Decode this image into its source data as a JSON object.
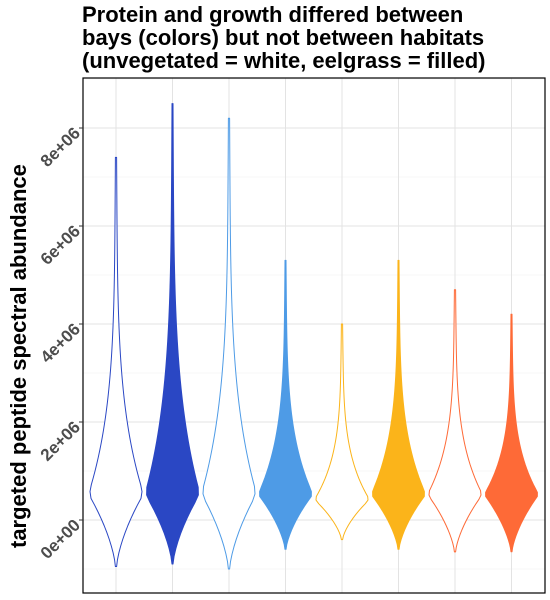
{
  "chart_data": {
    "type": "violin",
    "title_lines": [
      "Protein and growth differed between",
      "bays (colors) but not between habitats",
      "(unvegetated = white, eelgrass = filled)"
    ],
    "xlabel": "",
    "ylabel": "targeted peptide spectral abundance",
    "ylim": [
      -1000000,
      9000000
    ],
    "y_ticks": [
      0,
      2000000,
      4000000,
      6000000,
      8000000
    ],
    "y_tick_labels": [
      "0e+00",
      "2e+06",
      "4e+06",
      "6e+06",
      "8e+06"
    ],
    "grid": true,
    "legend": "none",
    "series": [
      {
        "color": "#2a47c4",
        "filled": false,
        "min": -950000,
        "max": 7400000,
        "mode": 500000
      },
      {
        "color": "#2a47c4",
        "filled": true,
        "min": -900000,
        "max": 8500000,
        "mode": 500000
      },
      {
        "color": "#4e9be6",
        "filled": false,
        "min": -1000000,
        "max": 8200000,
        "mode": 500000
      },
      {
        "color": "#4e9be6",
        "filled": true,
        "min": -600000,
        "max": 5300000,
        "mode": 500000
      },
      {
        "color": "#fbb41a",
        "filled": false,
        "min": -400000,
        "max": 4000000,
        "mode": 400000
      },
      {
        "color": "#fbb41a",
        "filled": true,
        "min": -600000,
        "max": 5300000,
        "mode": 500000
      },
      {
        "color": "#fe6a37",
        "filled": false,
        "min": -650000,
        "max": 4700000,
        "mode": 500000
      },
      {
        "color": "#fe6a37",
        "filled": true,
        "min": -650000,
        "max": 4200000,
        "mode": 500000
      }
    ]
  }
}
